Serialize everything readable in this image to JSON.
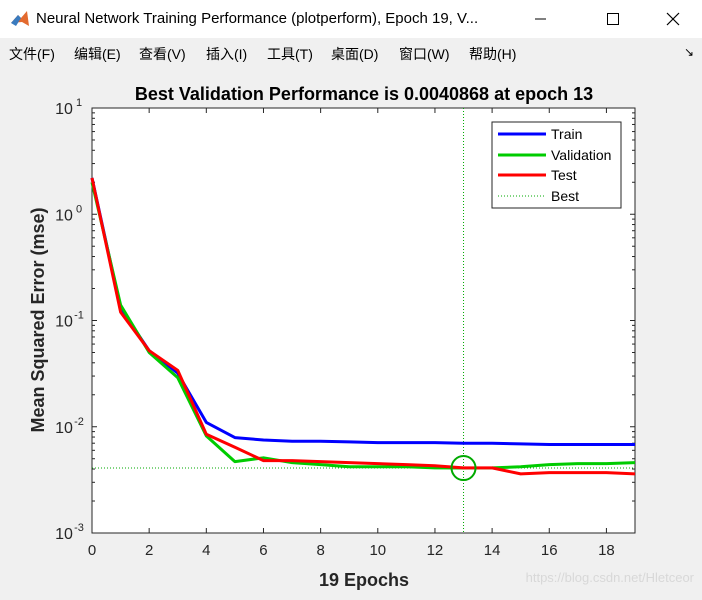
{
  "window": {
    "title": "Neural Network Training Performance (plotperform), Epoch 19, V..."
  },
  "menu": [
    {
      "label": "文件(F)"
    },
    {
      "label": "编辑(E)"
    },
    {
      "label": "查看(V)"
    },
    {
      "label": "插入(I)"
    },
    {
      "label": "工具(T)"
    },
    {
      "label": "桌面(D)"
    },
    {
      "label": "窗口(W)"
    },
    {
      "label": "帮助(H)"
    }
  ],
  "watermark": "https://blog.csdn.net/Hletceor",
  "colors": {
    "train": "#0000ff",
    "validation": "#00cc00",
    "test": "#ff0000",
    "best": "#00aa00"
  },
  "chart_data": {
    "type": "line",
    "title": "Best Validation Performance is 0.0040868 at epoch 13",
    "xlabel": "19 Epochs",
    "ylabel": "Mean Squared Error  (mse)",
    "xlim": [
      0,
      19
    ],
    "ylim": [
      0.001,
      10
    ],
    "yscale": "log",
    "x_ticks": [
      "0",
      "2",
      "4",
      "6",
      "8",
      "10",
      "12",
      "14",
      "16",
      "18"
    ],
    "y_ticks": [
      {
        "base": "10",
        "exp": "1"
      },
      {
        "base": "10",
        "exp": "0"
      },
      {
        "base": "10",
        "exp": "-1"
      },
      {
        "base": "10",
        "exp": "-2"
      },
      {
        "base": "10",
        "exp": "-3"
      }
    ],
    "legend_position": "top-right",
    "x": [
      0,
      1,
      2,
      3,
      4,
      5,
      6,
      7,
      8,
      9,
      10,
      11,
      12,
      13,
      14,
      15,
      16,
      17,
      18,
      19
    ],
    "series": [
      {
        "name": "Train",
        "values": [
          2.2,
          0.13,
          0.052,
          0.032,
          0.011,
          0.0079,
          0.0075,
          0.0073,
          0.0073,
          0.0072,
          0.0071,
          0.0071,
          0.0071,
          0.007,
          0.007,
          0.0069,
          0.0068,
          0.0068,
          0.0068,
          0.0068
        ]
      },
      {
        "name": "Validation",
        "values": [
          2.0,
          0.14,
          0.05,
          0.029,
          0.0082,
          0.0047,
          0.0051,
          0.0046,
          0.0044,
          0.0042,
          0.0042,
          0.0042,
          0.0041,
          0.0040868,
          0.0041,
          0.0042,
          0.0044,
          0.0045,
          0.0045,
          0.0046
        ]
      },
      {
        "name": "Test",
        "values": [
          2.2,
          0.12,
          0.052,
          0.034,
          0.0085,
          0.0064,
          0.0048,
          0.0048,
          0.0047,
          0.0046,
          0.0045,
          0.0044,
          0.0043,
          0.0041,
          0.0041,
          0.0036,
          0.0037,
          0.0037,
          0.0037,
          0.0036
        ]
      }
    ],
    "best": {
      "name": "Best",
      "epoch": 13,
      "value": 0.0040868
    }
  }
}
